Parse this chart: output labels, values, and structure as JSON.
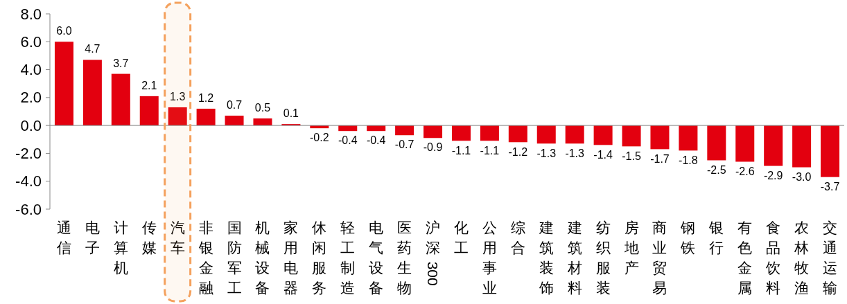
{
  "chart_data": {
    "type": "bar",
    "categories": [
      "通信",
      "电子",
      "计算机",
      "传媒",
      "汽车",
      "非银金融",
      "国防军工",
      "机械设备",
      "家用电器",
      "休闲服务",
      "轻工制造",
      "电气设备",
      "医药生物",
      "沪深300",
      "化工",
      "公用事业",
      "综合",
      "建筑装饰",
      "建筑材料",
      "纺织服装",
      "房地产",
      "商业贸易",
      "钢铁",
      "银行",
      "有色金属",
      "食品饮料",
      "农林牧渔",
      "交通运输"
    ],
    "values": [
      6.0,
      4.7,
      3.7,
      2.1,
      1.3,
      1.2,
      0.7,
      0.5,
      0.1,
      -0.2,
      -0.4,
      -0.4,
      -0.7,
      -0.9,
      -1.1,
      -1.1,
      -1.2,
      -1.3,
      -1.3,
      -1.4,
      -1.5,
      -1.7,
      -1.8,
      -2.5,
      -2.6,
      -2.9,
      -3.0,
      -3.7
    ],
    "value_labels": [
      "6.0",
      "4.7",
      "3.7",
      "2.1",
      "1.3",
      "1.2",
      "0.7",
      "0.5",
      "0.1",
      "-0.2",
      "-0.4",
      "-0.4",
      "-0.7",
      "-0.9",
      "-1.1",
      "-1.1",
      "-1.2",
      "-1.3",
      "-1.3",
      "-1.4",
      "-1.5",
      "-1.7",
      "-1.8",
      "-2.5",
      "-2.6",
      "-2.9",
      "-3.0",
      "-3.7"
    ],
    "color": "#e3000f",
    "ylim": [
      -6,
      8
    ],
    "yticks": [
      {
        "value": -6,
        "label": "-6.0"
      },
      {
        "value": -4,
        "label": "-4.0"
      },
      {
        "value": -2,
        "label": "-2.0"
      },
      {
        "value": 0,
        "label": "0.0"
      },
      {
        "value": 2,
        "label": "2.0"
      },
      {
        "value": 4,
        "label": "4.0"
      },
      {
        "value": 6,
        "label": "6.0"
      },
      {
        "value": 8,
        "label": "8.0"
      }
    ],
    "bands": [
      {
        "axis": "x",
        "from": "汽车",
        "to": "汽车",
        "color": "#f4a15d"
      }
    ]
  }
}
